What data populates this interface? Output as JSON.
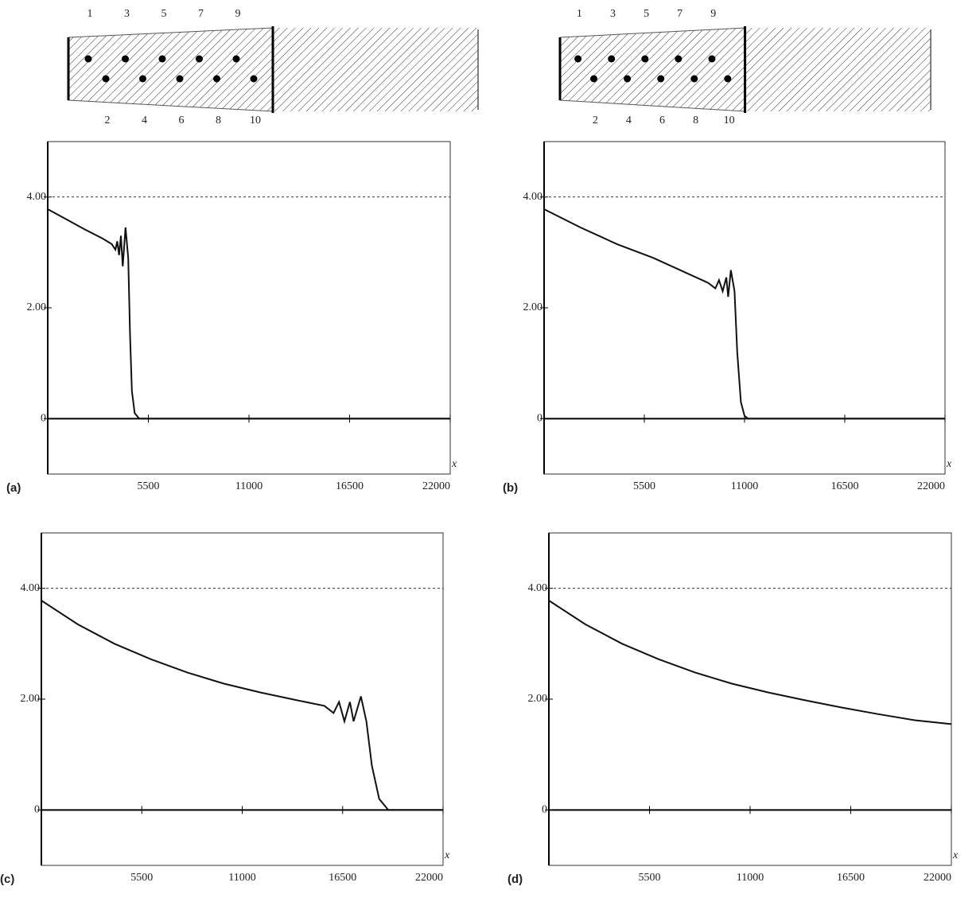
{
  "diagrams": [
    {
      "labels": [
        "1",
        "2",
        "3",
        "4",
        "5",
        "6",
        "7",
        "8",
        "9",
        "10"
      ]
    },
    {
      "labels": [
        "1",
        "2",
        "3",
        "4",
        "5",
        "6",
        "7",
        "8",
        "9",
        "10"
      ]
    }
  ],
  "chart_data": [
    {
      "type": "line",
      "panel_label": "(a)",
      "x_label": "x",
      "color": "#111111",
      "x": [
        0,
        1000,
        2000,
        3000,
        3500,
        3700,
        3800,
        3900,
        4000,
        4100,
        4250,
        4400,
        4500,
        4600,
        4750,
        5000,
        11000,
        22000
      ],
      "values": [
        3.78,
        3.6,
        3.42,
        3.25,
        3.15,
        3.05,
        3.2,
        2.95,
        3.3,
        2.75,
        3.45,
        2.9,
        1.5,
        0.5,
        0.1,
        0,
        0,
        0
      ],
      "reference_line": 4,
      "xlim": [
        0,
        22000
      ],
      "ylim": [
        -1,
        5
      ],
      "xticks": [
        5500,
        11000,
        16500,
        22000
      ],
      "yticks": [
        0,
        {
          "value": 2,
          "label": "2.00"
        },
        {
          "value": 4,
          "label": "4.00"
        }
      ]
    },
    {
      "type": "line",
      "panel_label": "(b)",
      "x_label": "x",
      "color": "#111111",
      "x": [
        0,
        2000,
        4000,
        6000,
        8000,
        9000,
        9400,
        9600,
        9800,
        10000,
        10100,
        10250,
        10450,
        10600,
        10800,
        11000,
        11200,
        22000
      ],
      "values": [
        3.78,
        3.45,
        3.15,
        2.9,
        2.6,
        2.45,
        2.35,
        2.5,
        2.3,
        2.55,
        2.2,
        2.68,
        2.3,
        1.2,
        0.3,
        0.05,
        0,
        0
      ],
      "reference_line": 4,
      "xlim": [
        0,
        22000
      ],
      "ylim": [
        -1,
        5
      ],
      "xticks": [
        5500,
        11000,
        16500,
        22000
      ],
      "yticks": [
        0,
        {
          "value": 2,
          "label": "2.00"
        },
        {
          "value": 4,
          "label": "4.00"
        }
      ]
    },
    {
      "type": "line",
      "panel_label": "(c)",
      "x_label": "x",
      "color": "#111111",
      "x": [
        0,
        2000,
        4000,
        6000,
        8000,
        10000,
        12000,
        14000,
        15500,
        16000,
        16300,
        16600,
        16900,
        17100,
        17500,
        17800,
        18100,
        18500,
        19000,
        22000
      ],
      "values": [
        3.78,
        3.35,
        3.0,
        2.72,
        2.48,
        2.28,
        2.12,
        1.98,
        1.88,
        1.75,
        1.95,
        1.6,
        1.95,
        1.6,
        2.05,
        1.6,
        0.8,
        0.2,
        0,
        0
      ],
      "reference_line": 4,
      "xlim": [
        0,
        22000
      ],
      "ylim": [
        -1,
        5
      ],
      "xticks": [
        5500,
        11000,
        16500,
        22000
      ],
      "yticks": [
        0,
        {
          "value": 2,
          "label": "2.00"
        },
        {
          "value": 4,
          "label": "4.00"
        }
      ]
    },
    {
      "type": "line",
      "panel_label": "(d)",
      "x_label": "x",
      "color": "#111111",
      "x": [
        0,
        2000,
        4000,
        6000,
        8000,
        10000,
        12000,
        14000,
        16000,
        18000,
        20000,
        22000
      ],
      "values": [
        3.78,
        3.35,
        3.0,
        2.72,
        2.48,
        2.28,
        2.12,
        1.98,
        1.85,
        1.73,
        1.62,
        1.55
      ],
      "reference_line": 4,
      "xlim": [
        0,
        22000
      ],
      "ylim": [
        -1,
        5
      ],
      "xticks": [
        5500,
        11000,
        16500,
        22000
      ],
      "yticks": [
        0,
        {
          "value": 2,
          "label": "2.00"
        },
        {
          "value": 4,
          "label": "4.00"
        }
      ]
    }
  ]
}
